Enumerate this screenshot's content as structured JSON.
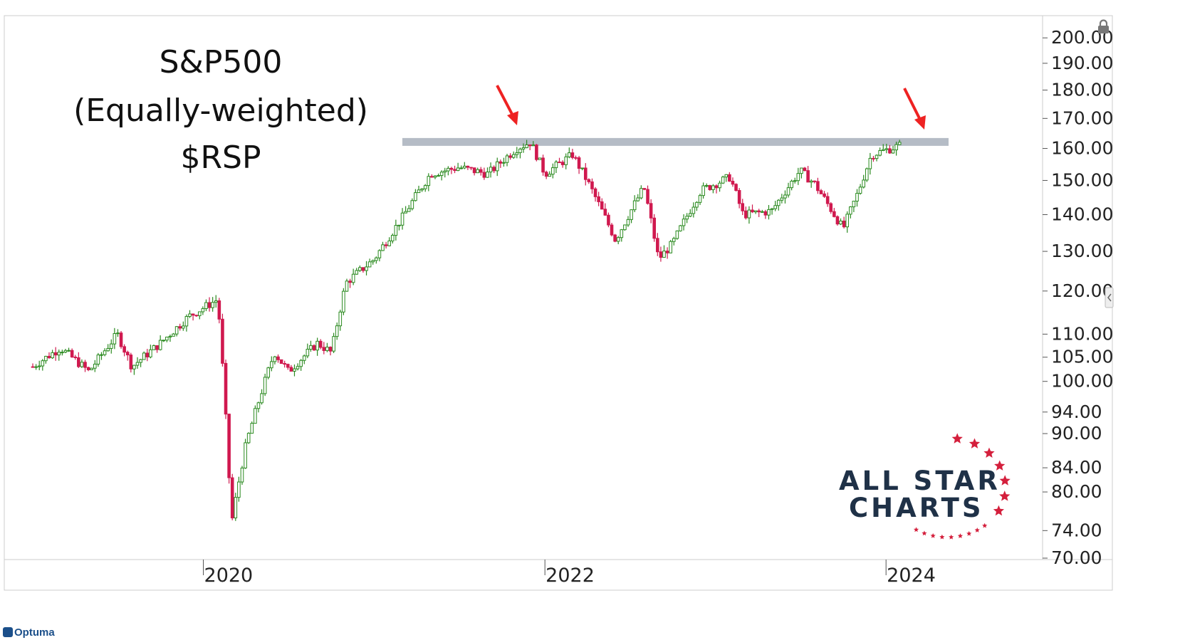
{
  "title_lines": [
    "S&P500",
    "(Equally-weighted)",
    "$RSP"
  ],
  "footer_brand": "Optuma",
  "logo": {
    "line1": "ALL STAR",
    "line2": "CHARTS",
    "star_color": "#d41f3c"
  },
  "colors": {
    "up": "#2a8a1f",
    "down": "#d0194f",
    "resistance": "#b5bcc6",
    "arrow": "#ee2222",
    "grid": "#dddddd"
  },
  "chart_data": {
    "type": "candlestick",
    "title": "S&P500 (Equally-weighted) $RSP",
    "yscale": "log",
    "ylim": [
      70,
      205
    ],
    "xlim": [
      "2018-11",
      "2024-12"
    ],
    "y_ticks": [
      "200.00",
      "190.00",
      "180.00",
      "170.00",
      "160.00",
      "150.00",
      "140.00",
      "130.00",
      "120.00",
      "110.00",
      "105.00",
      "100.00",
      "94.00",
      "90.00",
      "84.00",
      "80.00",
      "74.00",
      "70.00"
    ],
    "x_ticks": [
      "2020",
      "2022",
      "2024"
    ],
    "resistance_level": 162,
    "annotations": [
      "arrow at 2021-12 high",
      "arrow at 2024-02 high"
    ],
    "price_path": [
      {
        "x": "2019-01",
        "y": 103
      },
      {
        "x": "2019-03",
        "y": 107
      },
      {
        "x": "2019-05",
        "y": 102
      },
      {
        "x": "2019-07",
        "y": 110
      },
      {
        "x": "2019-08",
        "y": 103
      },
      {
        "x": "2019-10",
        "y": 108
      },
      {
        "x": "2019-12",
        "y": 114
      },
      {
        "x": "2020-02",
        "y": 118
      },
      {
        "x": "2020-03",
        "y": 75
      },
      {
        "x": "2020-04",
        "y": 88
      },
      {
        "x": "2020-06",
        "y": 106
      },
      {
        "x": "2020-07",
        "y": 102
      },
      {
        "x": "2020-09",
        "y": 108
      },
      {
        "x": "2020-10",
        "y": 106
      },
      {
        "x": "2020-11",
        "y": 122
      },
      {
        "x": "2021-01",
        "y": 128
      },
      {
        "x": "2021-03",
        "y": 139
      },
      {
        "x": "2021-05",
        "y": 152
      },
      {
        "x": "2021-07",
        "y": 154
      },
      {
        "x": "2021-09",
        "y": 152
      },
      {
        "x": "2021-11",
        "y": 160
      },
      {
        "x": "2021-12",
        "y": 162
      },
      {
        "x": "2022-01",
        "y": 152
      },
      {
        "x": "2022-03",
        "y": 158
      },
      {
        "x": "2022-04",
        "y": 150
      },
      {
        "x": "2022-06",
        "y": 133
      },
      {
        "x": "2022-08",
        "y": 148
      },
      {
        "x": "2022-09",
        "y": 128
      },
      {
        "x": "2022-10",
        "y": 132
      },
      {
        "x": "2022-12",
        "y": 147
      },
      {
        "x": "2023-02",
        "y": 151
      },
      {
        "x": "2023-03",
        "y": 140
      },
      {
        "x": "2023-05",
        "y": 141
      },
      {
        "x": "2023-07",
        "y": 153
      },
      {
        "x": "2023-08",
        "y": 149
      },
      {
        "x": "2023-10",
        "y": 136
      },
      {
        "x": "2023-11",
        "y": 146
      },
      {
        "x": "2023-12",
        "y": 158
      },
      {
        "x": "2024-02",
        "y": 161
      }
    ]
  }
}
